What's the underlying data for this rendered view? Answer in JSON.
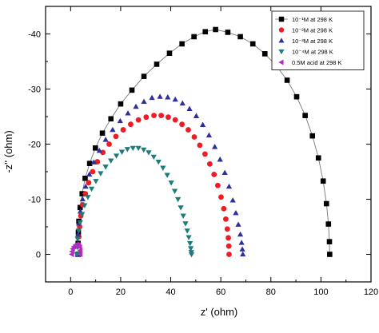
{
  "chart_data": {
    "type": "scatter",
    "xlabel": "z' (ohm)",
    "ylabel": "-z'' (ohm)",
    "xlim": [
      -10,
      120
    ],
    "ylim": [
      5,
      -45
    ],
    "x_ticks": [
      0,
      20,
      40,
      60,
      80,
      100,
      120
    ],
    "y_ticks": [
      0,
      -10,
      -20,
      -30,
      -40
    ],
    "legend_position": "top-right",
    "grid": false,
    "series": [
      {
        "name": "10⁻¹M at 298 K",
        "marker": "square",
        "color": "#000000",
        "connect_line": true,
        "x": [
          3.0,
          3.0,
          3.1,
          3.3,
          3.8,
          4.6,
          5.8,
          7.6,
          9.9,
          12.7,
          16.1,
          20.0,
          24.5,
          29.3,
          34.4,
          39.5,
          44.5,
          49.3,
          53.8,
          57.9,
          62.8,
          67.8,
          72.8,
          77.6,
          82.2,
          86.5,
          90.3,
          93.7,
          96.6,
          99.0,
          100.9,
          102.2,
          103.0,
          103.4,
          103.5
        ],
        "y": [
          0.0,
          -2.0,
          -4.0,
          -6.0,
          -8.5,
          -11.0,
          -13.8,
          -16.5,
          -19.3,
          -22.0,
          -24.6,
          -27.3,
          -29.8,
          -32.3,
          -34.5,
          -36.5,
          -38.2,
          -39.5,
          -40.4,
          -40.8,
          -40.3,
          -39.5,
          -38.2,
          -36.4,
          -34.2,
          -31.6,
          -28.6,
          -25.2,
          -21.5,
          -17.5,
          -13.3,
          -9.2,
          -5.5,
          -2.3,
          0.0
        ]
      },
      {
        "name": "10⁻²M at 298 K",
        "marker": "circle",
        "color": "#ee1c25",
        "x": [
          3.2,
          3.2,
          3.3,
          3.6,
          4.1,
          4.8,
          5.9,
          7.2,
          8.8,
          10.7,
          12.9,
          15.4,
          18.1,
          21.0,
          24.0,
          27.1,
          30.2,
          33.3,
          36.2,
          39.0,
          41.8,
          44.5,
          47.0,
          49.4,
          51.6,
          53.7,
          55.6,
          57.3,
          58.8,
          60.1,
          61.2,
          62.0,
          62.6,
          63.0,
          63.2,
          63.3
        ],
        "y": [
          0.0,
          -1.5,
          -3.2,
          -5.0,
          -7.0,
          -9.0,
          -11.0,
          -13.0,
          -15.0,
          -16.8,
          -18.5,
          -20.0,
          -21.4,
          -22.6,
          -23.6,
          -24.4,
          -24.9,
          -25.2,
          -25.2,
          -24.9,
          -24.4,
          -23.6,
          -22.6,
          -21.3,
          -19.8,
          -18.2,
          -16.4,
          -14.5,
          -12.5,
          -10.4,
          -8.3,
          -6.4,
          -4.6,
          -3.0,
          -1.5,
          0.0
        ]
      },
      {
        "name": "10⁻³M at 298 K",
        "marker": "triangle-up",
        "color": "#2e2e9e",
        "x": [
          2.8,
          2.8,
          3.0,
          3.3,
          3.9,
          4.8,
          6.0,
          7.5,
          9.3,
          11.5,
          14.0,
          16.8,
          19.8,
          22.9,
          26.1,
          29.3,
          32.5,
          35.7,
          38.8,
          41.8,
          44.7,
          47.5,
          50.2,
          52.8,
          55.3,
          57.6,
          59.7,
          61.6,
          63.3,
          64.8,
          66.0,
          67.0,
          67.8,
          68.3,
          68.6,
          68.8
        ],
        "y": [
          0.0,
          -1.8,
          -3.6,
          -5.6,
          -7.8,
          -10.0,
          -12.3,
          -14.5,
          -16.7,
          -18.8,
          -20.8,
          -22.6,
          -24.2,
          -25.6,
          -26.8,
          -27.7,
          -28.4,
          -28.6,
          -28.5,
          -28.1,
          -27.4,
          -26.4,
          -25.1,
          -23.5,
          -21.6,
          -19.5,
          -17.2,
          -14.8,
          -12.3,
          -9.8,
          -7.5,
          -5.4,
          -3.6,
          -2.1,
          -0.9,
          0.0
        ]
      },
      {
        "name": "10⁻⁴M at 298 K",
        "marker": "triangle-down",
        "color": "#1f7a7a",
        "x": [
          2.5,
          2.6,
          2.8,
          3.2,
          3.8,
          4.6,
          5.6,
          6.9,
          8.4,
          10.1,
          12.0,
          14.0,
          16.1,
          18.3,
          20.5,
          22.7,
          24.9,
          27.1,
          29.2,
          31.2,
          33.2,
          35.1,
          36.9,
          38.6,
          40.2,
          41.6,
          42.9,
          44.0,
          45.0,
          45.9,
          46.6,
          47.2,
          47.7,
          48.0,
          48.2,
          48.3
        ],
        "y": [
          0.0,
          -1.4,
          -2.8,
          -4.3,
          -5.8,
          -7.3,
          -8.9,
          -10.4,
          -11.9,
          -13.3,
          -14.7,
          -15.9,
          -17.0,
          -17.9,
          -18.6,
          -19.1,
          -19.3,
          -19.3,
          -19.0,
          -18.5,
          -17.7,
          -16.8,
          -15.7,
          -14.4,
          -13.0,
          -11.5,
          -10.0,
          -8.5,
          -7.0,
          -5.6,
          -4.3,
          -3.1,
          -2.0,
          -1.1,
          -0.4,
          0.0
        ]
      },
      {
        "name": "0.5M acid at 298 K",
        "marker": "triangle-left",
        "color": "#b12cc2",
        "x": [
          0.5,
          0.6,
          0.9,
          1.4,
          2.0,
          2.7,
          3.3,
          3.7,
          3.9,
          3.9
        ],
        "y": [
          0.0,
          -0.5,
          -1.0,
          -1.4,
          -1.7,
          -1.8,
          -1.7,
          -1.3,
          -0.7,
          0.0
        ]
      }
    ]
  }
}
